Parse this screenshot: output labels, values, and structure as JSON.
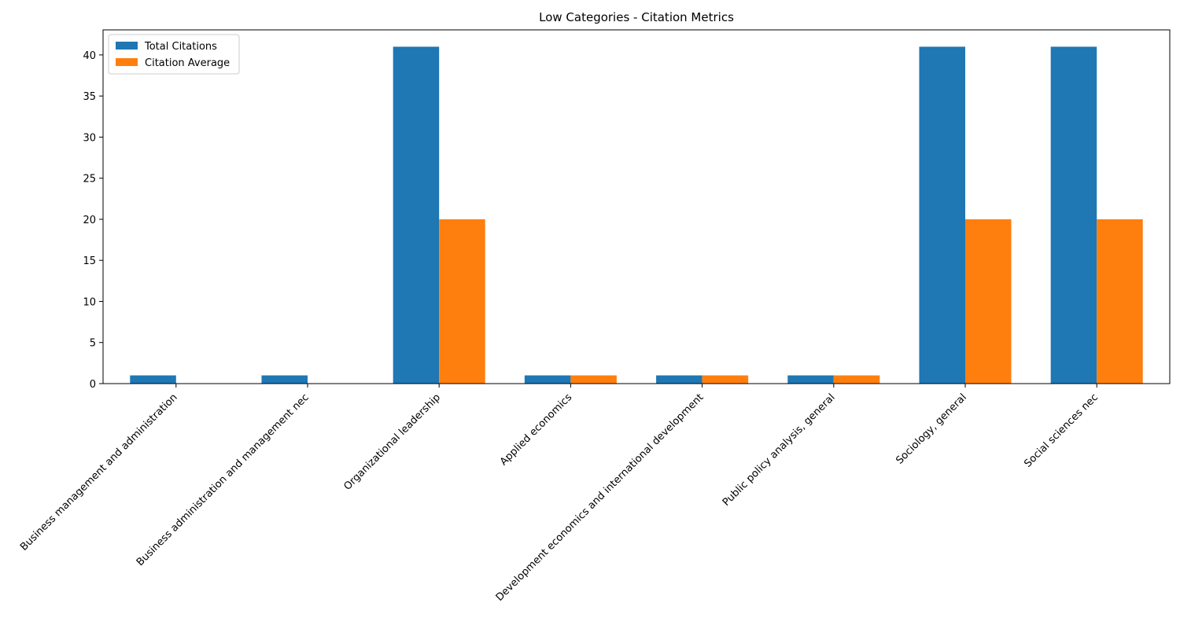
{
  "chart_data": {
    "type": "bar",
    "title": "Low Categories - Citation Metrics",
    "xlabel": "",
    "ylabel": "",
    "categories": [
      "Business management and administration",
      "Business administration and management nec",
      "Organizational leadership",
      "Applied economics",
      "Development economics and international development",
      "Public policy analysis, general",
      "Sociology, general",
      "Social sciences nec"
    ],
    "series": [
      {
        "name": "Total Citations",
        "color": "#1f77b4",
        "values": [
          1,
          1,
          41,
          1,
          1,
          1,
          41,
          41
        ]
      },
      {
        "name": "Citation Average",
        "color": "#ff7f0e",
        "values": [
          0,
          0,
          20,
          1,
          1,
          1,
          20,
          20
        ]
      }
    ],
    "ylim": [
      0,
      43.05
    ],
    "yticks": [
      0,
      5,
      10,
      15,
      20,
      25,
      30,
      35,
      40
    ],
    "grid": false,
    "legend_position": "top-left"
  }
}
